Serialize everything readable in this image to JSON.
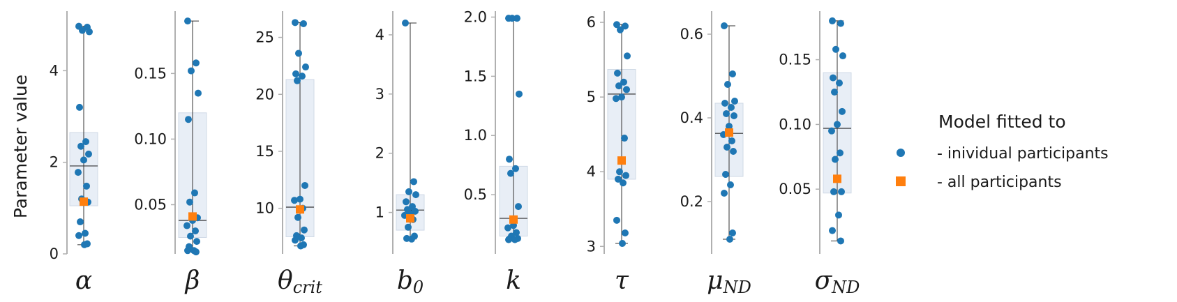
{
  "chart_data": [
    {
      "type": "scatter",
      "param": {
        "base": "α",
        "sub": ""
      },
      "ylim": [
        0,
        5.3
      ],
      "ticks": [
        {
          "v": 0,
          "label": "0"
        },
        {
          "v": 2,
          "label": "2"
        },
        {
          "v": 4,
          "label": "4"
        }
      ],
      "individual": [
        4.97,
        4.95,
        4.88,
        4.85,
        3.2,
        2.45,
        2.35,
        2.18,
        2.05,
        1.78,
        1.48,
        1.2,
        1.13,
        0.7,
        0.45,
        0.4,
        0.22,
        0.2
      ],
      "all": 1.14,
      "box": {
        "q1": 1.05,
        "median": 1.92,
        "q3": 2.65
      },
      "whisker": [
        0.2,
        4.97
      ]
    },
    {
      "type": "scatter",
      "param": {
        "base": "β",
        "sub": ""
      },
      "ylim": [
        0.0125,
        0.1975
      ],
      "ticks": [
        {
          "v": 0.05,
          "label": "0.05"
        },
        {
          "v": 0.1,
          "label": "0.10"
        },
        {
          "v": 0.15,
          "label": "0.15"
        }
      ],
      "individual": [
        0.19,
        0.158,
        0.152,
        0.135,
        0.115,
        0.059,
        0.052,
        0.04,
        0.038,
        0.034,
        0.03,
        0.026,
        0.022,
        0.018,
        0.015,
        0.015,
        0.014
      ],
      "all": 0.041,
      "box": {
        "q1": 0.025,
        "median": 0.038,
        "q3": 0.12
      },
      "whisker": [
        0.014,
        0.19
      ]
    },
    {
      "type": "scatter",
      "param": {
        "base": "θ",
        "sub": "crit"
      },
      "ylim": [
        6.0,
        27.3
      ],
      "ticks": [
        {
          "v": 10,
          "label": "10"
        },
        {
          "v": 15,
          "label": "15"
        },
        {
          "v": 20,
          "label": "20"
        },
        {
          "v": 25,
          "label": "25"
        }
      ],
      "individual": [
        26.3,
        26.2,
        23.6,
        22.4,
        21.8,
        21.6,
        21.2,
        12.0,
        10.8,
        10.7,
        10.0,
        9.2,
        8.1,
        7.6,
        7.4,
        7.2,
        6.8,
        6.7
      ],
      "all": 9.9,
      "box": {
        "q1": 7.5,
        "median": 10.1,
        "q3": 21.3
      },
      "whisker": [
        6.7,
        26.3
      ]
    },
    {
      "type": "scatter",
      "param": {
        "base": "b",
        "sub": "0"
      },
      "ylim": [
        0.3,
        4.4
      ],
      "ticks": [
        {
          "v": 1,
          "label": "1"
        },
        {
          "v": 2,
          "label": "2"
        },
        {
          "v": 3,
          "label": "3"
        },
        {
          "v": 4,
          "label": "4"
        }
      ],
      "individual": [
        4.2,
        1.52,
        1.35,
        1.3,
        1.18,
        1.1,
        1.05,
        1.02,
        0.98,
        0.95,
        0.88,
        0.75,
        0.6,
        0.56,
        0.55
      ],
      "all": 0.9,
      "box": {
        "q1": 0.7,
        "median": 1.04,
        "q3": 1.3
      },
      "whisker": [
        0.55,
        4.2
      ]
    },
    {
      "type": "scatter",
      "param": {
        "base": "k",
        "sub": ""
      },
      "ylim": [
        0.0,
        2.05
      ],
      "ticks": [
        {
          "v": 0.5,
          "label": "0.5"
        },
        {
          "v": 1.0,
          "label": "1.0"
        },
        {
          "v": 1.5,
          "label": "1.5"
        },
        {
          "v": 2.0,
          "label": "2.0"
        }
      ],
      "individual": [
        1.99,
        1.99,
        1.99,
        1.35,
        0.8,
        0.72,
        0.68,
        0.4,
        0.24,
        0.22,
        0.18,
        0.15,
        0.13,
        0.13,
        0.12,
        0.12
      ],
      "all": 0.29,
      "box": {
        "q1": 0.15,
        "median": 0.3,
        "q3": 0.74
      },
      "whisker": [
        0.12,
        1.99
      ]
    },
    {
      "type": "scatter",
      "param": {
        "base": "τ",
        "sub": ""
      },
      "ylim": [
        2.9,
        6.15
      ],
      "ticks": [
        {
          "v": 3,
          "label": "3"
        },
        {
          "v": 4,
          "label": "4"
        },
        {
          "v": 5,
          "label": "5"
        },
        {
          "v": 6,
          "label": "6"
        }
      ],
      "individual": [
        5.97,
        5.95,
        5.9,
        5.55,
        5.32,
        5.2,
        5.15,
        5.1,
        5.0,
        4.98,
        4.45,
        4.0,
        3.95,
        3.9,
        3.85,
        3.35,
        3.18,
        3.04
      ],
      "all": 4.15,
      "box": {
        "q1": 3.9,
        "median": 5.04,
        "q3": 5.37
      },
      "whisker": [
        3.04,
        5.97
      ]
    },
    {
      "type": "scatter",
      "param": {
        "base": "μ",
        "sub": "ND"
      },
      "ylim": [
        0.075,
        0.655
      ],
      "ticks": [
        {
          "v": 0.2,
          "label": "0.2"
        },
        {
          "v": 0.4,
          "label": "0.4"
        },
        {
          "v": 0.6,
          "label": "0.6"
        }
      ],
      "individual": [
        0.62,
        0.505,
        0.48,
        0.44,
        0.435,
        0.425,
        0.41,
        0.405,
        0.38,
        0.36,
        0.345,
        0.33,
        0.32,
        0.265,
        0.24,
        0.22,
        0.125,
        0.11
      ],
      "all": 0.365,
      "box": {
        "q1": 0.26,
        "median": 0.363,
        "q3": 0.435
      },
      "whisker": [
        0.11,
        0.62
      ]
    },
    {
      "type": "scatter",
      "param": {
        "base": "σ",
        "sub": "ND"
      },
      "ylim": [
        0.0,
        0.1875
      ],
      "ticks": [
        {
          "v": 0.05,
          "label": "0.05"
        },
        {
          "v": 0.1,
          "label": "0.10"
        },
        {
          "v": 0.15,
          "label": "0.15"
        }
      ],
      "individual": [
        0.18,
        0.178,
        0.158,
        0.153,
        0.136,
        0.132,
        0.125,
        0.11,
        0.1,
        0.095,
        0.078,
        0.073,
        0.048,
        0.048,
        0.03,
        0.018,
        0.01
      ],
      "all": 0.058,
      "box": {
        "q1": 0.047,
        "median": 0.097,
        "q3": 0.14
      },
      "whisker": [
        0.01,
        0.18
      ]
    }
  ],
  "ylabel": "Parameter value",
  "legend": {
    "title": "Model fitted to",
    "items": [
      {
        "label": "- inividual participants",
        "marker": "circle",
        "color": "#1f77b4"
      },
      {
        "label": "- all participants",
        "marker": "square",
        "color": "#ff7f0e"
      }
    ]
  },
  "colors": {
    "individual": "#1f77b4",
    "all": "#ff7f0e",
    "box": "#e8eef6",
    "box_edge": "#cfd9e6",
    "axis": "#b0b0b0"
  }
}
